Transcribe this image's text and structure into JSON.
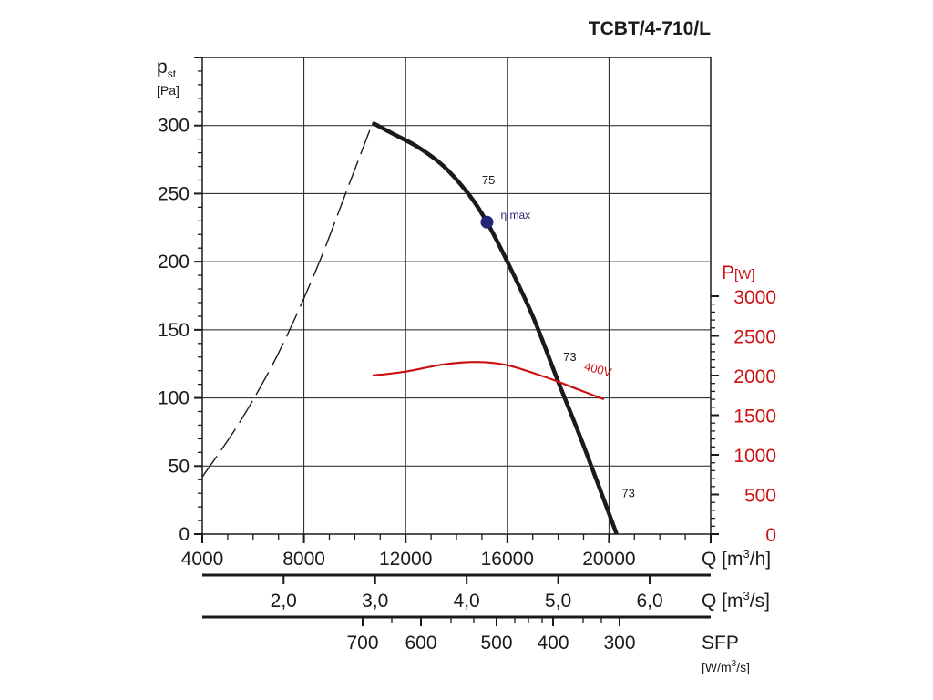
{
  "chart_data": {
    "type": "line",
    "title": "TCBT/4-710/L",
    "y_left": {
      "symbol": "p",
      "subscript": "st",
      "unit": "[Pa]",
      "range": [
        0,
        350
      ],
      "ticks": [
        0,
        50,
        100,
        150,
        200,
        250,
        300
      ]
    },
    "y_right": {
      "symbol": "P",
      "unit": "[W]",
      "range": [
        0,
        3000
      ],
      "ticks": [
        0,
        500,
        1000,
        1500,
        2000,
        2500,
        3000
      ],
      "tick_labels": [
        "0",
        "500",
        "1000",
        "1500",
        "2000",
        "2500",
        "3000"
      ]
    },
    "x_axis": {
      "label": "Q [m",
      "sup": "3",
      "label_end": "/h]",
      "range": [
        4000,
        24000
      ],
      "ticks": [
        4000,
        8000,
        12000,
        16000,
        20000
      ],
      "tick_labels": [
        "4000",
        "8000",
        "12000",
        "16000",
        "20000"
      ]
    },
    "x_axis_2": {
      "label": "Q [m",
      "sup": "3",
      "label_end": "/s]",
      "ticks": [
        2.0,
        3.0,
        4.0,
        5.0,
        6.0
      ],
      "tick_labels": [
        "2,0",
        "3,0",
        "4,0",
        "5,0",
        "6,0"
      ]
    },
    "x_axis_3": {
      "label": "SFP",
      "unit_pre": "[W/m",
      "unit_sup": "3",
      "unit_end": "/s]",
      "ticks": [
        700,
        600,
        500,
        400,
        300
      ],
      "tick_labels": [
        "700",
        "600",
        "500",
        "400",
        "300"
      ]
    },
    "series": [
      {
        "name": "pressure",
        "axis": "left",
        "style": "solid",
        "x": [
          10700,
          11500,
          12500,
          13500,
          14500,
          15200,
          16000,
          17000,
          18000,
          19000,
          20300
        ],
        "y": [
          302,
          294,
          284,
          270,
          249,
          229,
          200,
          160,
          112,
          65,
          0
        ]
      },
      {
        "name": "unstable",
        "axis": "left",
        "style": "dashed",
        "x": [
          4000,
          5500,
          7000,
          8500,
          9800,
          10700
        ],
        "y": [
          42,
          83,
          133,
          195,
          258,
          302
        ]
      },
      {
        "name": "400V",
        "axis": "right",
        "style": "solid",
        "x": [
          10700,
          12000,
          13500,
          14800,
          16000,
          17500,
          18500,
          19800
        ],
        "y": [
          2000,
          2050,
          2140,
          2170,
          2130,
          1980,
          1860,
          1700
        ]
      }
    ],
    "point": {
      "label": "η max",
      "x": 15200,
      "y": 229
    },
    "annotations": [
      {
        "text": "75",
        "x": 15000,
        "y": 257
      },
      {
        "text": "73",
        "x": 18200,
        "y": 127
      },
      {
        "text": "73",
        "x": 20500,
        "y": 27
      },
      {
        "text": "400V",
        "x": 19000,
        "y": 2070,
        "axis": "right"
      }
    ]
  },
  "colors": {
    "ink": "#1a1a1a",
    "red": "#cc1111",
    "point": "#25257a"
  }
}
